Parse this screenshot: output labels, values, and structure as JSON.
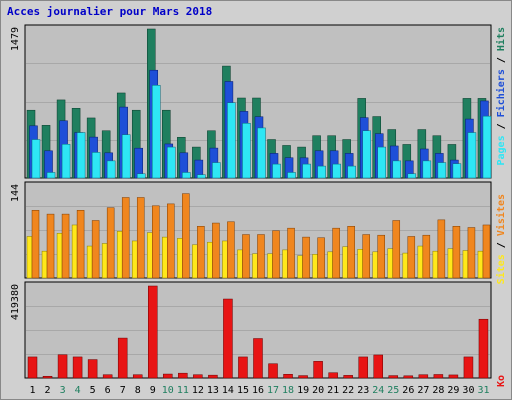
{
  "title": "Acces journalier pour Mars 2018",
  "colors": {
    "panel_bg": "#c0c0c0",
    "frame_bg": "#d0d0d0",
    "hits": "#1f7f5f",
    "files": "#1e4fd8",
    "pages": "#2ee6f5",
    "visits": "#f0861e",
    "sites": "#ffe81a",
    "kb": "#e81414",
    "title": "#0000c8",
    "day_weekday": "#000000",
    "day_weekend": "#1f7f5f"
  },
  "chart_data": [
    {
      "type": "bar",
      "panel": "hits",
      "y_tick_label": "1479",
      "ylim": [
        0,
        1479
      ],
      "legend": [
        "Pages",
        "Fichiers",
        "Hits"
      ],
      "categories": [
        "1",
        "2",
        "3",
        "4",
        "5",
        "6",
        "7",
        "8",
        "9",
        "10",
        "11",
        "12",
        "13",
        "14",
        "15",
        "16",
        "17",
        "18",
        "19",
        "20",
        "21",
        "22",
        "23",
        "24",
        "25",
        "26",
        "27",
        "28",
        "29",
        "30",
        "31"
      ],
      "series": [
        {
          "name": "Hits",
          "values": [
            673,
            523,
            775,
            692,
            596,
            469,
            844,
            673,
            1479,
            673,
            404,
            307,
            469,
            1111,
            794,
            794,
            382,
            323,
            307,
            420,
            420,
            382,
            790,
            610,
            481,
            333,
            481,
            420,
            333,
            790,
            790
          ]
        },
        {
          "name": "Fichiers",
          "values": [
            518,
            270,
            568,
            451,
            406,
            250,
            704,
            296,
            1070,
            338,
            250,
            178,
            297,
            958,
            661,
            608,
            244,
            201,
            200,
            270,
            270,
            244,
            599,
            440,
            318,
            170,
            288,
            244,
            178,
            585,
            765
          ]
        },
        {
          "name": "Pages",
          "values": [
            382,
            55,
            335,
            451,
            254,
            170,
            430,
            42,
            920,
            307,
            55,
            33,
            153,
            747,
            543,
            497,
            138,
            55,
            138,
            118,
            138,
            118,
            469,
            307,
            170,
            42,
            170,
            153,
            142,
            451,
            614
          ]
        }
      ]
    },
    {
      "type": "bar",
      "panel": "visits",
      "y_tick_label": "144",
      "ylim": [
        0,
        144
      ],
      "legend": [
        "Sites",
        "Visites"
      ],
      "categories": [
        "1",
        "2",
        "3",
        "4",
        "5",
        "6",
        "7",
        "8",
        "9",
        "10",
        "11",
        "12",
        "13",
        "14",
        "15",
        "16",
        "17",
        "18",
        "19",
        "20",
        "21",
        "22",
        "23",
        "24",
        "25",
        "26",
        "27",
        "28",
        "29",
        "30",
        "31"
      ],
      "series": [
        {
          "name": "Visites",
          "values": [
            106,
            100,
            100,
            106,
            90,
            110,
            126,
            126,
            113,
            116,
            132,
            81,
            86,
            88,
            68,
            68,
            74,
            78,
            64,
            63,
            78,
            81,
            68,
            67,
            90,
            65,
            67,
            91,
            81,
            79,
            83
          ]
        },
        {
          "name": "Sites",
          "values": [
            65,
            42,
            70,
            83,
            50,
            54,
            73,
            58,
            71,
            64,
            62,
            52,
            56,
            58,
            44,
            38,
            38,
            44,
            35,
            37,
            41,
            49,
            45,
            41,
            46,
            39,
            50,
            42,
            46,
            43,
            42
          ]
        }
      ]
    },
    {
      "type": "bar",
      "panel": "kb",
      "y_tick_label": "419380",
      "ylim": [
        0,
        419380
      ],
      "legend": [
        "Ko"
      ],
      "categories": [
        "1",
        "2",
        "3",
        "4",
        "5",
        "6",
        "7",
        "8",
        "9",
        "10",
        "11",
        "12",
        "13",
        "14",
        "15",
        "16",
        "17",
        "18",
        "19",
        "20",
        "21",
        "22",
        "23",
        "24",
        "25",
        "26",
        "27",
        "28",
        "29",
        "30",
        "31"
      ],
      "series": [
        {
          "name": "Ko",
          "values": [
            96000,
            8000,
            106000,
            96000,
            84000,
            15000,
            182000,
            15000,
            419380,
            18000,
            22000,
            15000,
            13000,
            360000,
            96000,
            180000,
            65000,
            17000,
            11000,
            76000,
            24000,
            12000,
            96000,
            105000,
            11000,
            10000,
            15000,
            16000,
            14000,
            96000,
            268000
          ]
        }
      ]
    }
  ],
  "weekend_days": [
    "3",
    "4",
    "10",
    "11",
    "17",
    "18",
    "24",
    "25",
    "31"
  ]
}
